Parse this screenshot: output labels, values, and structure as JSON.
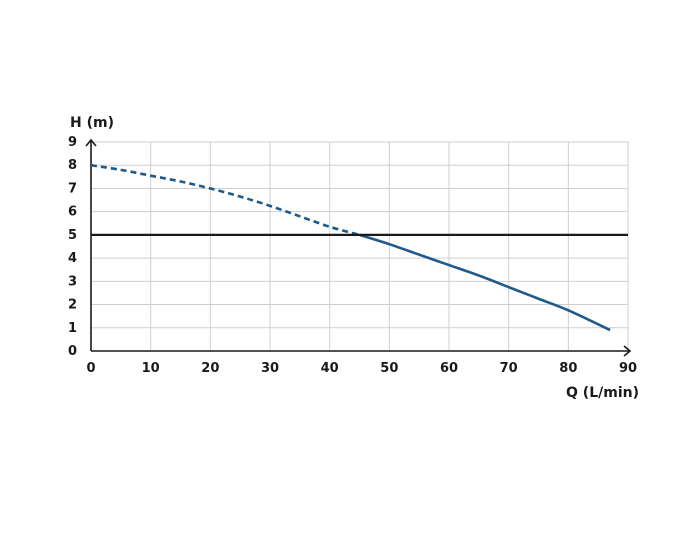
{
  "chart_data": {
    "type": "line",
    "title": "",
    "xlabel": "Q (L/min)",
    "ylabel": "H (m)",
    "xlim": [
      0,
      90
    ],
    "ylim": [
      0,
      9
    ],
    "xticks": [
      0,
      10,
      20,
      30,
      40,
      50,
      60,
      70,
      80,
      90
    ],
    "yticks": [
      0,
      1,
      2,
      3,
      4,
      5,
      6,
      7,
      8,
      9
    ],
    "grid": true,
    "colors": {
      "curve": "#1f5a8a",
      "reference": "#1a1a1a",
      "grid": "#cfcfcf"
    },
    "series": [
      {
        "style": "dashed",
        "x": [
          0,
          5,
          10,
          15,
          20,
          25,
          30,
          35,
          40,
          45
        ],
        "y": [
          8.0,
          7.8,
          7.55,
          7.3,
          7.0,
          6.65,
          6.25,
          5.8,
          5.35,
          5.0
        ]
      },
      {
        "style": "solid",
        "x": [
          45,
          50,
          55,
          60,
          65,
          70,
          75,
          80,
          87
        ],
        "y": [
          5.0,
          4.6,
          4.15,
          3.7,
          3.25,
          2.75,
          2.25,
          1.75,
          0.9
        ]
      },
      {
        "style": "reference",
        "x": [
          0,
          90
        ],
        "y": [
          5,
          5
        ]
      }
    ]
  }
}
